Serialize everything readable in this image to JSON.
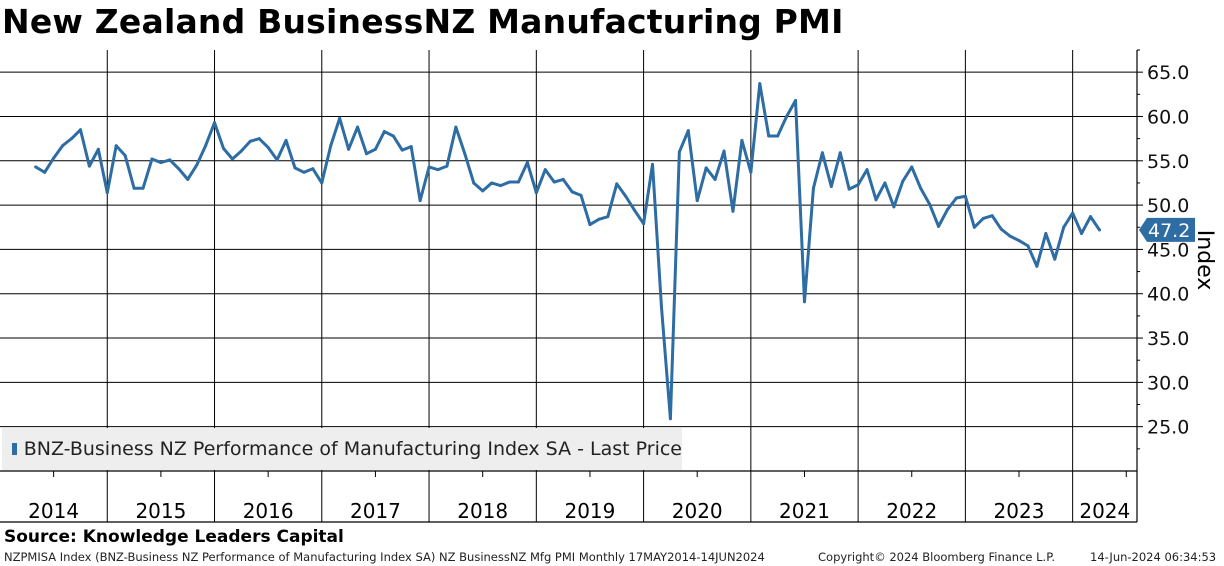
{
  "title": "New Zealand BusinessNZ Manufacturing PMI",
  "source": "Source: Knowledge Leaders Capital",
  "footer": {
    "description": "NZPMISA Index (BNZ-Business NZ Performance of Manufacturing Index SA) NZ BusinessNZ Mfg PMI  Monthly 17MAY2014-14JUN2024",
    "copyright": "Copyright© 2024 Bloomberg Finance L.P.",
    "timestamp": "14-Jun-2024 06:34:53"
  },
  "colors": {
    "line": "#2e6ca4",
    "grid": "#000000"
  },
  "chart_data": {
    "type": "line",
    "title": "New Zealand BusinessNZ Manufacturing PMI",
    "ylabel": "Index",
    "ylim": [
      20,
      67.5
    ],
    "yticks": [
      "65.0",
      "60.0",
      "55.0",
      "50.0",
      "45.0",
      "40.0",
      "35.0",
      "30.0",
      "25.0"
    ],
    "xlim": [
      2014.0,
      2024.6
    ],
    "year_labels": [
      "2014",
      "2015",
      "2016",
      "2017",
      "2018",
      "2019",
      "2020",
      "2021",
      "2022",
      "2023",
      "2024"
    ],
    "last_price_label": "47.2",
    "legend": "BNZ-Business NZ Performance of Manufacturing Index SA - Last Price",
    "series": [
      {
        "name": "BNZ-Business NZ Performance of Manufacturing Index SA - Last Price",
        "start": "2014-05",
        "frequency": "monthly",
        "values": [
          54.3,
          53.7,
          55.3,
          56.7,
          57.5,
          58.5,
          54.4,
          56.3,
          51.4,
          56.7,
          55.6,
          51.9,
          51.9,
          55.2,
          54.8,
          55.1,
          54.1,
          52.9,
          54.5,
          56.7,
          59.3,
          56.4,
          55.2,
          56.1,
          57.2,
          57.5,
          56.5,
          55.1,
          57.3,
          54.2,
          53.7,
          54.1,
          52.5,
          56.7,
          59.8,
          56.3,
          58.8,
          55.8,
          56.3,
          58.3,
          57.8,
          56.2,
          56.6,
          50.5,
          54.3,
          54.0,
          54.4,
          58.8,
          55.8,
          52.5,
          51.6,
          52.5,
          52.2,
          52.6,
          52.6,
          54.8,
          51.4,
          54.0,
          52.6,
          52.9,
          51.5,
          51.1,
          47.8,
          48.4,
          48.7,
          52.4,
          51.0,
          49.4,
          47.9,
          54.6,
          38.5,
          25.9,
          56.0,
          58.4,
          50.5,
          54.2,
          52.9,
          56.1,
          49.3,
          57.3,
          53.7,
          63.7,
          57.8,
          57.8,
          60.0,
          61.8,
          39.1,
          51.9,
          55.9,
          52.1,
          55.9,
          51.8,
          52.3,
          54.0,
          50.6,
          52.5,
          49.8,
          52.7,
          54.3,
          51.9,
          50.1,
          47.6,
          49.5,
          50.8,
          51.0,
          47.5,
          48.5,
          48.8,
          47.3,
          46.5,
          46.0,
          45.4,
          43.1,
          46.8,
          43.9,
          47.5,
          49.1,
          46.8,
          48.7,
          47.2
        ]
      }
    ]
  }
}
